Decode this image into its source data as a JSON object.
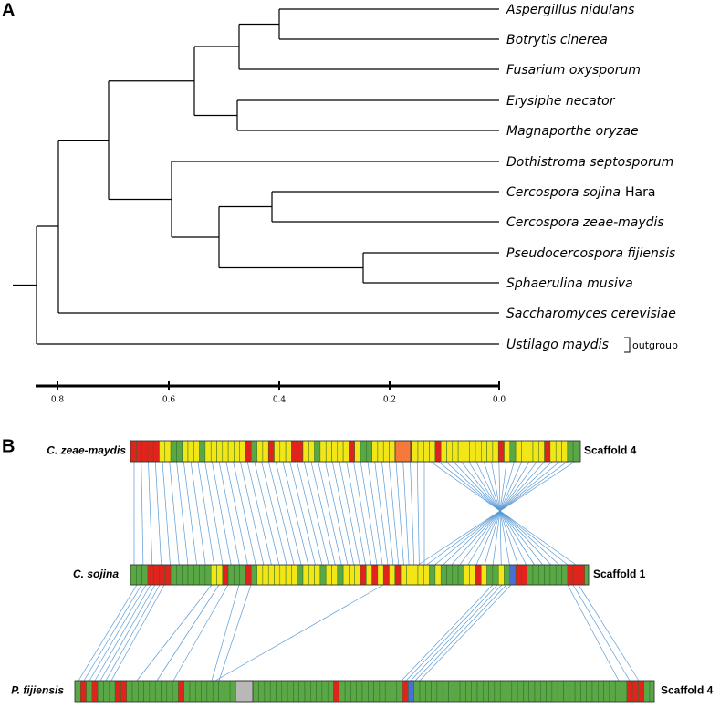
{
  "panel_a": {
    "label": "A",
    "leaves": [
      {
        "name": "Aspergillus nidulans"
      },
      {
        "name": "Botrytis cinerea"
      },
      {
        "name": "Fusarium oxysporum"
      },
      {
        "name": "Erysiphe necator"
      },
      {
        "name": "Magnaporthe oryzae"
      },
      {
        "name": "Dothistroma septosporum"
      },
      {
        "name": "Cercospora sojina",
        "authority": "Hara"
      },
      {
        "name": "Cercospora zeae-maydis"
      },
      {
        "name": "Pseudocercospora fijiensis"
      },
      {
        "name": "Sphaerulina musiva"
      },
      {
        "name": "Saccharomyces cerevisiae"
      },
      {
        "name": "Ustilago maydis"
      }
    ],
    "outgroup": "outgroup",
    "scale_ticks": [
      "0.8",
      "0.6",
      "0.4",
      "0.2",
      "0.0"
    ]
  },
  "panel_b": {
    "label": "B",
    "scaffolds": [
      {
        "species": "C. zeae-maydis",
        "scaffold": "Scaffold 4"
      },
      {
        "species": "C. sojina",
        "scaffold": "Scaffold 1"
      },
      {
        "species": "P. fijiensis",
        "scaffold": "Scaffold 4"
      }
    ]
  }
}
